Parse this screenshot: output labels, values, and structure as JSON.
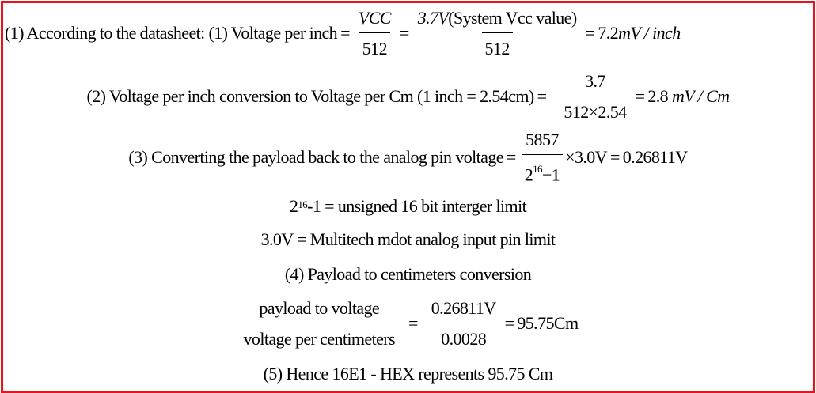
{
  "step1": {
    "text": "(1) According to the datasheet: (1) Voltage per inch",
    "frac1_num": "VCC",
    "frac1_den": "512",
    "frac2_num_var": "3.7V",
    "frac2_num_rest": "(System Vcc value)",
    "frac2_den": "512",
    "result_num": "7.2",
    "result_unit": "mV / inch"
  },
  "step2": {
    "text": "(2) Voltage per inch conversion to Voltage per Cm (1 inch = 2.54cm)",
    "frac_num": "3.7",
    "frac_den": "512×2.54",
    "result_num": "2.8",
    "result_unit": "mV / Cm"
  },
  "step3": {
    "text": "(3) Converting the payload back to the analog pin voltage",
    "frac_num": "5857",
    "frac_den_base": "2",
    "frac_den_exp": "16",
    "frac_den_rest": "−1",
    "mult": "×3.0V",
    "result": "0.26811V"
  },
  "note1": {
    "base": "2",
    "exp": "16",
    "rest": "-1 = unsigned 16 bit interger limit"
  },
  "note2": {
    "text": "3.0V = Multitech mdot analog input pin limit"
  },
  "step4": {
    "title": "(4) Payload to centimeters conversion",
    "frac1_num": "payload to voltage",
    "frac1_den": "voltage per centimeters",
    "frac2_num": "0.26811V",
    "frac2_den": "0.0028",
    "result": "95.75Cm"
  },
  "step5": {
    "text": "(5) Hence 16E1 - HEX represents 95.75 Cm"
  }
}
